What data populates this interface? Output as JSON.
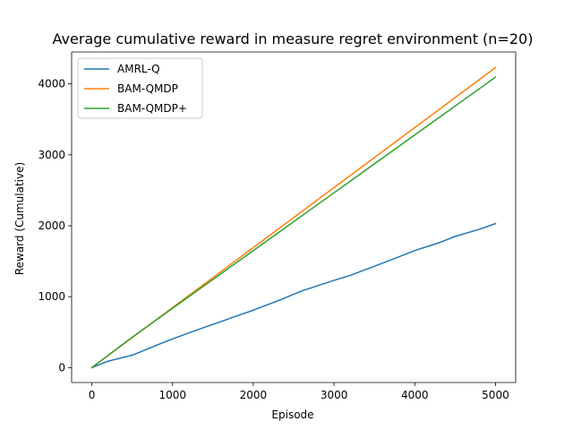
{
  "chart_data": {
    "type": "line",
    "title": "Average cumulative reward in measure regret environment (n=20)",
    "xlabel": "Episode",
    "ylabel": "Reward (Cumulative)",
    "xlim": [
      -250,
      5250
    ],
    "ylim": [
      -210,
      4450
    ],
    "xticks": [
      0,
      1000,
      2000,
      3000,
      4000,
      5000
    ],
    "yticks": [
      0,
      1000,
      2000,
      3000,
      4000
    ],
    "grid": false,
    "legend_position": "upper-left",
    "series": [
      {
        "name": "AMRL-Q",
        "color": "#1f77b4",
        "x": [
          0,
          200,
          500,
          800,
          1000,
          1300,
          1600,
          2000,
          2300,
          2600,
          3000,
          3200,
          3500,
          3800,
          4000,
          4300,
          4500,
          4800,
          5000
        ],
        "y": [
          0,
          90,
          175,
          315,
          405,
          530,
          650,
          810,
          940,
          1080,
          1230,
          1300,
          1430,
          1560,
          1650,
          1760,
          1850,
          1950,
          2030
        ]
      },
      {
        "name": "BAM-QMDP",
        "color": "#ff7f0e",
        "x": [
          0,
          1000,
          2000,
          3000,
          4000,
          5000
        ],
        "y": [
          0,
          846,
          1692,
          2538,
          3384,
          4230
        ]
      },
      {
        "name": "BAM-QMDP+",
        "color": "#2ca02c",
        "x": [
          0,
          500,
          1000,
          2000,
          3000,
          4000,
          5000
        ],
        "y": [
          0,
          428,
          836,
          1650,
          2465,
          3280,
          4095
        ]
      }
    ]
  }
}
